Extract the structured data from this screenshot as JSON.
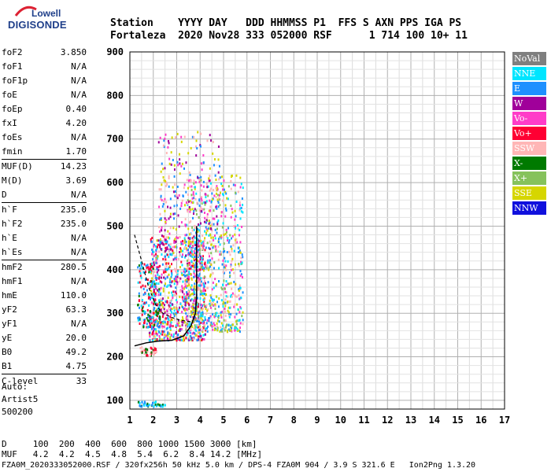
{
  "logo": {
    "line1": "Lowell",
    "line2": "DIGISONDE"
  },
  "header": {
    "line1": "Station    YYYY DAY   DDD HHMMSS P1  FFS S AXN PPS IGA PS",
    "line2": "Fortaleza  2020 Nov28 333 052000 RSF      1 714 100 10+ 11"
  },
  "params": {
    "group1": [
      {
        "name": "foF2",
        "value": "3.850"
      },
      {
        "name": "foF1",
        "value": "N/A"
      },
      {
        "name": "foF1p",
        "value": "N/A"
      },
      {
        "name": "foE",
        "value": "N/A"
      },
      {
        "name": "foEp",
        "value": "0.40"
      },
      {
        "name": "fxI",
        "value": "4.20"
      },
      {
        "name": "foEs",
        "value": "N/A"
      },
      {
        "name": "fmin",
        "value": "1.70"
      }
    ],
    "group2": [
      {
        "name": "MUF(D)",
        "value": "14.23"
      },
      {
        "name": "M(D)",
        "value": "3.69"
      },
      {
        "name": "D",
        "value": "N/A"
      }
    ],
    "group3": [
      {
        "name": "h`F",
        "value": "235.0"
      },
      {
        "name": "h`F2",
        "value": "235.0"
      },
      {
        "name": "h`E",
        "value": "N/A"
      },
      {
        "name": "h`Es",
        "value": "N/A"
      }
    ],
    "group4": [
      {
        "name": "hmF2",
        "value": "280.5"
      },
      {
        "name": "hmF1",
        "value": "N/A"
      },
      {
        "name": "hmE",
        "value": "110.0"
      },
      {
        "name": "yF2",
        "value": "63.3"
      },
      {
        "name": "yF1",
        "value": "N/A"
      },
      {
        "name": "yE",
        "value": "20.0"
      },
      {
        "name": "B0",
        "value": "49.2"
      },
      {
        "name": "B1",
        "value": "4.75"
      }
    ],
    "group5": [
      {
        "name": "C-level",
        "value": "33"
      }
    ]
  },
  "auto": {
    "line1": "Auto:",
    "line2": "Artist5",
    "line3": "500200"
  },
  "legend": [
    {
      "label": "NoVal",
      "color": "#7f7f7f"
    },
    {
      "label": "NNE",
      "color": "#00e5ff"
    },
    {
      "label": "E",
      "color": "#1e90ff"
    },
    {
      "label": "W",
      "color": "#a0009a"
    },
    {
      "label": "Vo-",
      "color": "#ff3cc8"
    },
    {
      "label": "Vo+",
      "color": "#ff0033"
    },
    {
      "label": "SSW",
      "color": "#ffb6b6"
    },
    {
      "label": "X-",
      "color": "#007a00"
    },
    {
      "label": "X+",
      "color": "#86c25c"
    },
    {
      "label": "SSE",
      "color": "#d6d600"
    },
    {
      "label": "NNW",
      "color": "#1010dd"
    }
  ],
  "footer": {
    "d_line": "D     100  200  400  600  800 1000 1500 3000 [km]",
    "muf_line": "MUF   4.2  4.2  4.5  4.8  5.4  6.2  8.4 14.2 [MHz]",
    "file_line": "FZA0M_2020333052000.RSF / 320fx256h 50 kHz 5.0 km / DPS-4 FZA0M 904 / 3.9 S 321.6 E   Ion2Png 1.3.20"
  },
  "chart_data": {
    "type": "scatter",
    "title": "",
    "xlabel": "",
    "ylabel": "",
    "xlim": [
      1,
      17
    ],
    "ylim": [
      80,
      900
    ],
    "x_ticks": [
      1,
      2,
      3,
      4,
      5,
      6,
      7,
      8,
      9,
      10,
      11,
      12,
      13,
      14,
      15,
      16,
      17
    ],
    "y_ticks": [
      100,
      200,
      300,
      400,
      500,
      600,
      700,
      800,
      900
    ],
    "grid": true,
    "legend_position": "right",
    "echo_clusters": [
      {
        "name": "F-trace-main",
        "x_range": [
          1.8,
          4.2
        ],
        "y_range": [
          240,
          480
        ],
        "colors": [
          "#1e90ff",
          "#00e5ff",
          "#ff3cc8",
          "#a0009a",
          "#ffb6b6",
          "#ff0033",
          "#d6d600"
        ]
      },
      {
        "name": "F-trace-high",
        "x_range": [
          3.3,
          5.8
        ],
        "y_range": [
          260,
          620
        ],
        "colors": [
          "#ffb6b6",
          "#d6d600",
          "#86c25c",
          "#ff3cc8",
          "#00e5ff",
          "#1e90ff"
        ]
      },
      {
        "name": "spread-upper",
        "x_range": [
          2.2,
          4.8
        ],
        "y_range": [
          450,
          720
        ],
        "colors": [
          "#d6d600",
          "#ffb6b6",
          "#ff3cc8",
          "#a0009a",
          "#1e90ff"
        ]
      },
      {
        "name": "low-frequency",
        "x_range": [
          1.3,
          2.3
        ],
        "y_range": [
          270,
          420
        ],
        "colors": [
          "#1e90ff",
          "#007a00",
          "#00e5ff",
          "#ff0033"
        ]
      },
      {
        "name": "E-layer",
        "x_range": [
          1.4,
          2.1
        ],
        "y_range": [
          205,
          225
        ],
        "colors": [
          "#ffb6b6",
          "#007a00",
          "#ff0033"
        ]
      },
      {
        "name": "near-ground",
        "x_range": [
          1.3,
          2.5
        ],
        "y_range": [
          88,
          100
        ],
        "colors": [
          "#1e90ff",
          "#007a00",
          "#00e5ff"
        ]
      }
    ],
    "profile_curve": [
      [
        1.2,
        225
      ],
      [
        1.7,
        232
      ],
      [
        2.2,
        236
      ],
      [
        2.8,
        238
      ],
      [
        3.3,
        248
      ],
      [
        3.6,
        270
      ],
      [
        3.8,
        300
      ],
      [
        3.85,
        340
      ],
      [
        3.85,
        500
      ]
    ],
    "dashed_curve": [
      [
        1.2,
        480
      ],
      [
        1.5,
        420
      ],
      [
        1.8,
        360
      ],
      [
        2.1,
        320
      ],
      [
        2.4,
        300
      ],
      [
        2.8,
        290
      ],
      [
        3.1,
        285
      ],
      [
        3.4,
        282
      ],
      [
        3.7,
        280
      ]
    ]
  }
}
